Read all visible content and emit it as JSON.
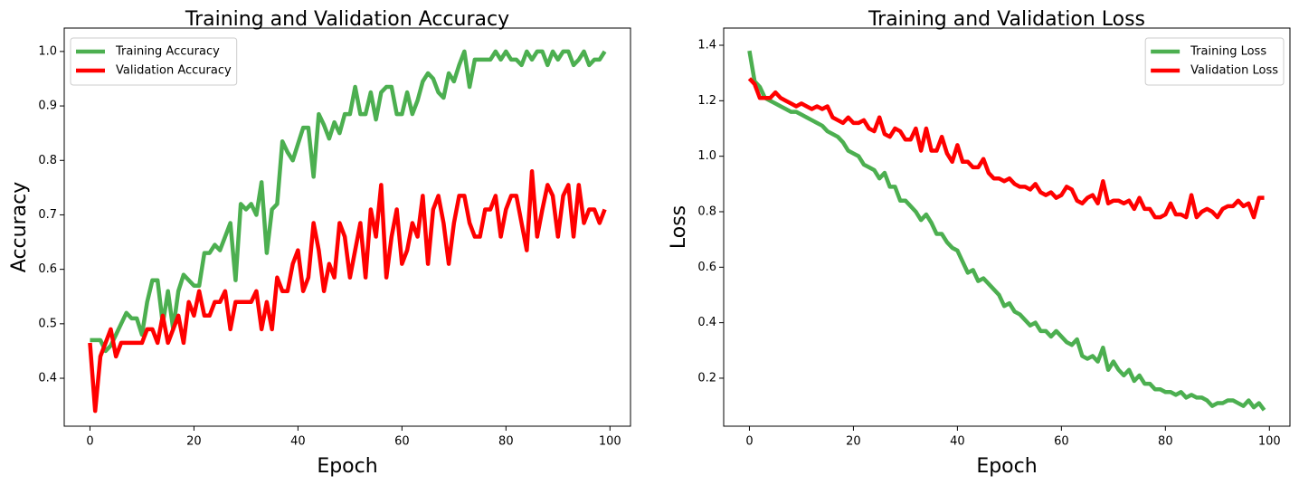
{
  "chart_data": [
    {
      "type": "line",
      "title": "Training and Validation Accuracy",
      "xlabel": "Epoch",
      "ylabel": "Accuracy",
      "x": [
        0,
        1,
        2,
        3,
        4,
        5,
        6,
        7,
        8,
        9,
        10,
        11,
        12,
        13,
        14,
        15,
        16,
        17,
        18,
        19,
        20,
        21,
        22,
        23,
        24,
        25,
        26,
        27,
        28,
        29,
        30,
        31,
        32,
        33,
        34,
        35,
        36,
        37,
        38,
        39,
        40,
        41,
        42,
        43,
        44,
        45,
        46,
        47,
        48,
        49,
        50,
        51,
        52,
        53,
        54,
        55,
        56,
        57,
        58,
        59,
        60,
        61,
        62,
        63,
        64,
        65,
        66,
        67,
        68,
        69,
        70,
        71,
        72,
        73,
        74,
        75,
        76,
        77,
        78,
        79,
        80,
        81,
        82,
        83,
        84,
        85,
        86,
        87,
        88,
        89,
        90,
        91,
        92,
        93,
        94,
        95,
        96,
        97,
        98,
        99
      ],
      "series": [
        {
          "name": "Training Accuracy",
          "color": "#4caf50",
          "values": [
            0.47,
            0.47,
            0.47,
            0.45,
            0.46,
            0.48,
            0.5,
            0.52,
            0.51,
            0.51,
            0.48,
            0.54,
            0.58,
            0.58,
            0.5,
            0.56,
            0.49,
            0.56,
            0.59,
            0.58,
            0.57,
            0.57,
            0.63,
            0.63,
            0.645,
            0.635,
            0.66,
            0.685,
            0.58,
            0.72,
            0.71,
            0.72,
            0.7,
            0.76,
            0.63,
            0.71,
            0.72,
            0.835,
            0.815,
            0.8,
            0.83,
            0.86,
            0.86,
            0.77,
            0.885,
            0.865,
            0.84,
            0.87,
            0.85,
            0.885,
            0.885,
            0.935,
            0.885,
            0.885,
            0.925,
            0.875,
            0.925,
            0.935,
            0.935,
            0.885,
            0.885,
            0.925,
            0.885,
            0.91,
            0.945,
            0.96,
            0.95,
            0.925,
            0.915,
            0.96,
            0.945,
            0.975,
            1.0,
            0.935,
            0.985,
            0.985,
            0.985,
            0.985,
            1.0,
            0.985,
            1.0,
            0.985,
            0.985,
            0.975,
            1.0,
            0.985,
            1.0,
            1.0,
            0.975,
            1.0,
            0.985,
            1.0,
            1.0,
            0.975,
            0.985,
            1.0,
            0.975,
            0.985,
            0.985,
            1.0
          ]
        },
        {
          "name": "Validation Accuracy",
          "color": "#ff0000",
          "values": [
            0.465,
            0.34,
            0.44,
            0.465,
            0.49,
            0.44,
            0.465,
            0.465,
            0.465,
            0.465,
            0.465,
            0.49,
            0.49,
            0.465,
            0.515,
            0.465,
            0.49,
            0.515,
            0.465,
            0.54,
            0.515,
            0.56,
            0.515,
            0.515,
            0.54,
            0.54,
            0.56,
            0.49,
            0.54,
            0.54,
            0.54,
            0.54,
            0.56,
            0.49,
            0.54,
            0.49,
            0.585,
            0.56,
            0.56,
            0.61,
            0.635,
            0.56,
            0.585,
            0.685,
            0.635,
            0.56,
            0.61,
            0.585,
            0.685,
            0.66,
            0.585,
            0.635,
            0.685,
            0.585,
            0.71,
            0.66,
            0.755,
            0.585,
            0.66,
            0.71,
            0.61,
            0.635,
            0.685,
            0.66,
            0.735,
            0.61,
            0.71,
            0.735,
            0.685,
            0.61,
            0.685,
            0.735,
            0.735,
            0.685,
            0.66,
            0.66,
            0.71,
            0.71,
            0.735,
            0.66,
            0.71,
            0.735,
            0.735,
            0.685,
            0.635,
            0.78,
            0.66,
            0.71,
            0.755,
            0.735,
            0.66,
            0.735,
            0.755,
            0.66,
            0.755,
            0.685,
            0.71,
            0.71,
            0.685,
            0.71
          ]
        }
      ],
      "xlim": [
        -4.95,
        103.95
      ],
      "ylim": [
        0.312,
        1.043
      ],
      "xticks": [
        0,
        20,
        40,
        60,
        80,
        100
      ],
      "yticks": [
        0.4,
        0.5,
        0.6,
        0.7,
        0.8,
        0.9,
        {
          "value": 1,
          "label": "1.0"
        }
      ],
      "legend": "upper left"
    },
    {
      "type": "line",
      "title": "Training and Validation Loss",
      "xlabel": "Epoch",
      "ylabel": "Loss",
      "x": [
        0,
        1,
        2,
        3,
        4,
        5,
        6,
        7,
        8,
        9,
        10,
        11,
        12,
        13,
        14,
        15,
        16,
        17,
        18,
        19,
        20,
        21,
        22,
        23,
        24,
        25,
        26,
        27,
        28,
        29,
        30,
        31,
        32,
        33,
        34,
        35,
        36,
        37,
        38,
        39,
        40,
        41,
        42,
        43,
        44,
        45,
        46,
        47,
        48,
        49,
        50,
        51,
        52,
        53,
        54,
        55,
        56,
        57,
        58,
        59,
        60,
        61,
        62,
        63,
        64,
        65,
        66,
        67,
        68,
        69,
        70,
        71,
        72,
        73,
        74,
        75,
        76,
        77,
        78,
        79,
        80,
        81,
        82,
        83,
        84,
        85,
        86,
        87,
        88,
        89,
        90,
        91,
        92,
        93,
        94,
        95,
        96,
        97,
        98,
        99
      ],
      "series": [
        {
          "name": "Training Loss",
          "color": "#4caf50",
          "values": [
            1.38,
            1.27,
            1.25,
            1.21,
            1.2,
            1.19,
            1.18,
            1.17,
            1.16,
            1.16,
            1.15,
            1.14,
            1.13,
            1.12,
            1.11,
            1.09,
            1.08,
            1.07,
            1.05,
            1.02,
            1.01,
            1.0,
            0.97,
            0.96,
            0.95,
            0.92,
            0.94,
            0.89,
            0.89,
            0.84,
            0.84,
            0.82,
            0.8,
            0.77,
            0.79,
            0.76,
            0.72,
            0.72,
            0.69,
            0.67,
            0.66,
            0.62,
            0.58,
            0.59,
            0.55,
            0.56,
            0.54,
            0.52,
            0.5,
            0.46,
            0.47,
            0.44,
            0.43,
            0.41,
            0.39,
            0.4,
            0.37,
            0.37,
            0.35,
            0.37,
            0.35,
            0.33,
            0.32,
            0.34,
            0.28,
            0.27,
            0.28,
            0.26,
            0.31,
            0.23,
            0.26,
            0.23,
            0.21,
            0.23,
            0.19,
            0.21,
            0.18,
            0.18,
            0.16,
            0.16,
            0.15,
            0.15,
            0.14,
            0.15,
            0.13,
            0.14,
            0.13,
            0.13,
            0.12,
            0.1,
            0.11,
            0.11,
            0.12,
            0.12,
            0.11,
            0.1,
            0.12,
            0.095,
            0.11,
            0.085
          ]
        },
        {
          "name": "Validation Loss",
          "color": "#ff0000",
          "values": [
            1.28,
            1.26,
            1.21,
            1.21,
            1.21,
            1.23,
            1.21,
            1.2,
            1.19,
            1.18,
            1.19,
            1.18,
            1.17,
            1.18,
            1.17,
            1.18,
            1.14,
            1.13,
            1.12,
            1.14,
            1.12,
            1.12,
            1.13,
            1.1,
            1.09,
            1.14,
            1.08,
            1.07,
            1.1,
            1.09,
            1.06,
            1.06,
            1.1,
            1.02,
            1.1,
            1.02,
            1.02,
            1.07,
            1.01,
            0.98,
            1.04,
            0.98,
            0.98,
            0.96,
            0.96,
            0.99,
            0.94,
            0.92,
            0.92,
            0.91,
            0.92,
            0.9,
            0.89,
            0.89,
            0.88,
            0.9,
            0.87,
            0.86,
            0.87,
            0.85,
            0.86,
            0.89,
            0.88,
            0.84,
            0.83,
            0.85,
            0.86,
            0.83,
            0.91,
            0.83,
            0.84,
            0.84,
            0.83,
            0.84,
            0.81,
            0.85,
            0.81,
            0.81,
            0.78,
            0.78,
            0.79,
            0.83,
            0.79,
            0.79,
            0.78,
            0.86,
            0.78,
            0.8,
            0.81,
            0.8,
            0.78,
            0.81,
            0.82,
            0.82,
            0.84,
            0.82,
            0.83,
            0.78,
            0.85,
            0.85
          ]
        }
      ],
      "xlim": [
        -4.95,
        103.95
      ],
      "ylim": [
        0.027,
        1.462
      ],
      "xticks": [
        0,
        20,
        40,
        60,
        80,
        100
      ],
      "yticks": [
        0.2,
        0.4,
        0.6,
        0.8,
        {
          "value": 1,
          "label": "1.0"
        },
        1.2,
        1.4
      ],
      "legend": "upper right"
    }
  ]
}
